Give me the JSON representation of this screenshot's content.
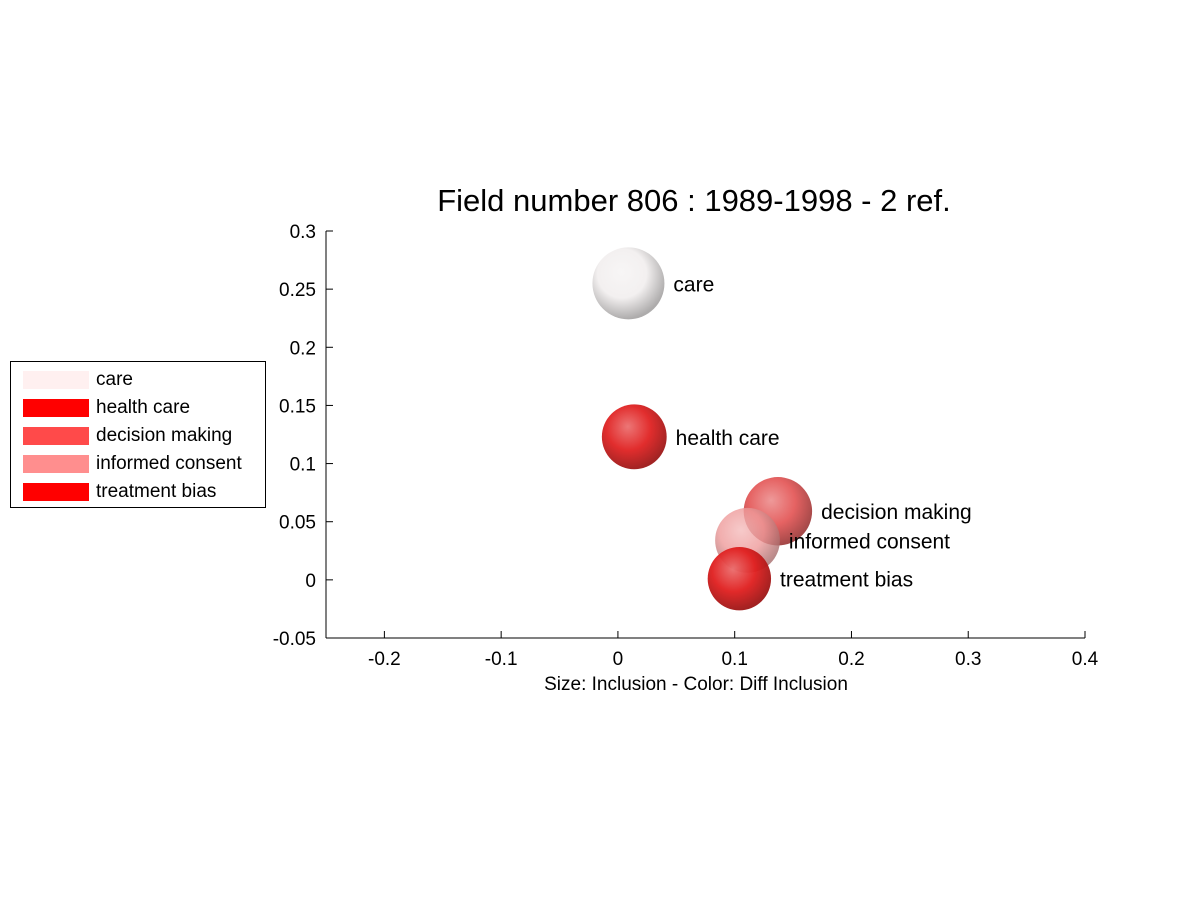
{
  "chart_data": {
    "type": "scatter",
    "title": "Field number 806 : 1989-1998  - 2 ref.",
    "xlabel": "Size: Inclusion - Color: Diff Inclusion",
    "ylabel": "",
    "xlim": [
      -0.25,
      0.4
    ],
    "ylim": [
      -0.05,
      0.3
    ],
    "xticks": [
      "-0.2",
      "-0.1",
      "0",
      "0.1",
      "0.2",
      "0.3",
      "0.4"
    ],
    "yticks": [
      "-0.05",
      "0",
      "0.05",
      "0.1",
      "0.15",
      "0.2",
      "0.25",
      "0.3"
    ],
    "grid": false,
    "legend_position": "left",
    "points": [
      {
        "label": "care",
        "x": 0.009,
        "y": 0.255,
        "size": 1.0,
        "color": "#f2efef"
      },
      {
        "label": "health care",
        "x": 0.014,
        "y": 0.123,
        "size": 0.9,
        "color": "#e02222"
      },
      {
        "label": "decision making",
        "x": 0.137,
        "y": 0.059,
        "size": 0.95,
        "color": "#e45a5a"
      },
      {
        "label": "informed consent",
        "x": 0.111,
        "y": 0.034,
        "size": 0.9,
        "color": "#ee9a9a"
      },
      {
        "label": "treatment bias",
        "x": 0.104,
        "y": 0.001,
        "size": 0.88,
        "color": "#e01e1e"
      }
    ],
    "legend": [
      {
        "label": "care",
        "color": "#fff0f0"
      },
      {
        "label": "health care",
        "color": "#ff0000"
      },
      {
        "label": "decision making",
        "color": "#ff4a4a"
      },
      {
        "label": "informed consent",
        "color": "#ff8e8e"
      },
      {
        "label": "treatment bias",
        "color": "#ff0000"
      }
    ]
  }
}
